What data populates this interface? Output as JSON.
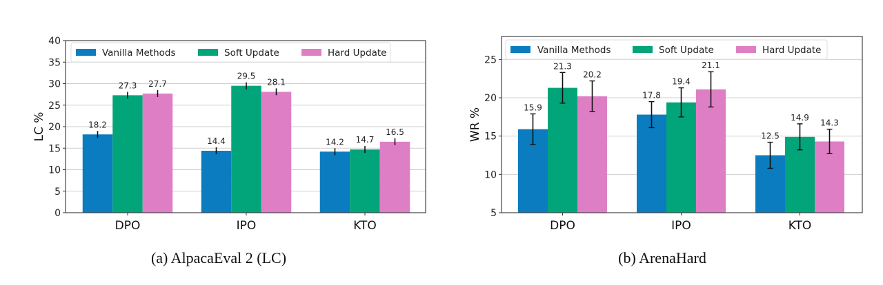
{
  "chart_data": [
    {
      "type": "bar",
      "caption": "(a) AlpacaEval 2 (LC)",
      "title": "",
      "xlabel": "",
      "ylabel": "LC %",
      "ylim": [
        0,
        40
      ],
      "yticks": [
        0,
        5,
        10,
        15,
        20,
        25,
        30,
        35,
        40
      ],
      "grid": true,
      "legend_position": "top-left",
      "categories": [
        "DPO",
        "IPO",
        "KTO"
      ],
      "series": [
        {
          "name": "Vanilla Methods",
          "color": "#0a7cbf",
          "values": [
            18.2,
            14.4,
            14.2
          ],
          "errors": [
            0.8,
            0.8,
            0.8
          ]
        },
        {
          "name": "Soft Update",
          "color": "#02a57a",
          "values": [
            27.3,
            29.5,
            14.7
          ],
          "errors": [
            0.8,
            0.8,
            0.8
          ]
        },
        {
          "name": "Hard Update",
          "color": "#de7fc5",
          "values": [
            27.7,
            28.1,
            16.5
          ],
          "errors": [
            0.8,
            0.8,
            0.8
          ]
        }
      ]
    },
    {
      "type": "bar",
      "caption": "(b) ArenaHard",
      "title": "",
      "xlabel": "",
      "ylabel": "WR %",
      "ylim": [
        5,
        28
      ],
      "yticks": [
        5,
        10,
        15,
        20,
        25
      ],
      "grid": true,
      "legend_position": "top-left",
      "categories": [
        "DPO",
        "IPO",
        "KTO"
      ],
      "series": [
        {
          "name": "Vanilla Methods",
          "color": "#0a7cbf",
          "values": [
            15.9,
            17.8,
            12.5
          ],
          "errors": [
            2.0,
            1.7,
            1.7
          ]
        },
        {
          "name": "Soft Update",
          "color": "#02a57a",
          "values": [
            21.3,
            19.4,
            14.9
          ],
          "errors": [
            2.0,
            1.9,
            1.7
          ]
        },
        {
          "name": "Hard Update",
          "color": "#de7fc5",
          "values": [
            20.2,
            21.1,
            14.3
          ],
          "errors": [
            2.0,
            2.3,
            1.6
          ]
        }
      ]
    }
  ]
}
